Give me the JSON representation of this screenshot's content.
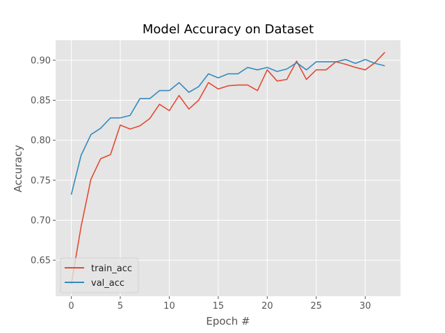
{
  "chart_data": {
    "type": "line",
    "title": "Model Accuracy on Dataset",
    "xlabel": "Epoch #",
    "ylabel": "Accuracy",
    "xlim": [
      -1.6,
      33.6
    ],
    "ylim": [
      0.605,
      0.925
    ],
    "xticks": [
      0,
      5,
      10,
      15,
      20,
      25,
      30
    ],
    "yticks": [
      0.65,
      0.7,
      0.75,
      0.8,
      0.85,
      0.9
    ],
    "grid": true,
    "legend_position": "lower-left",
    "x": [
      0,
      1,
      2,
      3,
      4,
      5,
      6,
      7,
      8,
      9,
      10,
      11,
      12,
      13,
      14,
      15,
      16,
      17,
      18,
      19,
      20,
      21,
      22,
      23,
      24,
      25,
      26,
      27,
      28,
      29,
      30,
      31,
      32
    ],
    "series": [
      {
        "name": "train_acc",
        "color": "#e24a33",
        "values": [
          0.62,
          0.692,
          0.751,
          0.777,
          0.782,
          0.819,
          0.814,
          0.818,
          0.827,
          0.845,
          0.837,
          0.856,
          0.839,
          0.85,
          0.872,
          0.864,
          0.868,
          0.869,
          0.869,
          0.862,
          0.888,
          0.874,
          0.876,
          0.899,
          0.876,
          0.888,
          0.888,
          0.898,
          0.895,
          0.891,
          0.888,
          0.897,
          0.91
        ]
      },
      {
        "name": "val_acc",
        "color": "#348abd",
        "values": [
          0.732,
          0.781,
          0.807,
          0.815,
          0.828,
          0.828,
          0.831,
          0.852,
          0.852,
          0.862,
          0.862,
          0.872,
          0.86,
          0.867,
          0.883,
          0.878,
          0.883,
          0.883,
          0.891,
          0.888,
          0.891,
          0.886,
          0.889,
          0.897,
          0.888,
          0.898,
          0.898,
          0.898,
          0.901,
          0.896,
          0.901,
          0.896,
          0.893
        ]
      }
    ]
  }
}
